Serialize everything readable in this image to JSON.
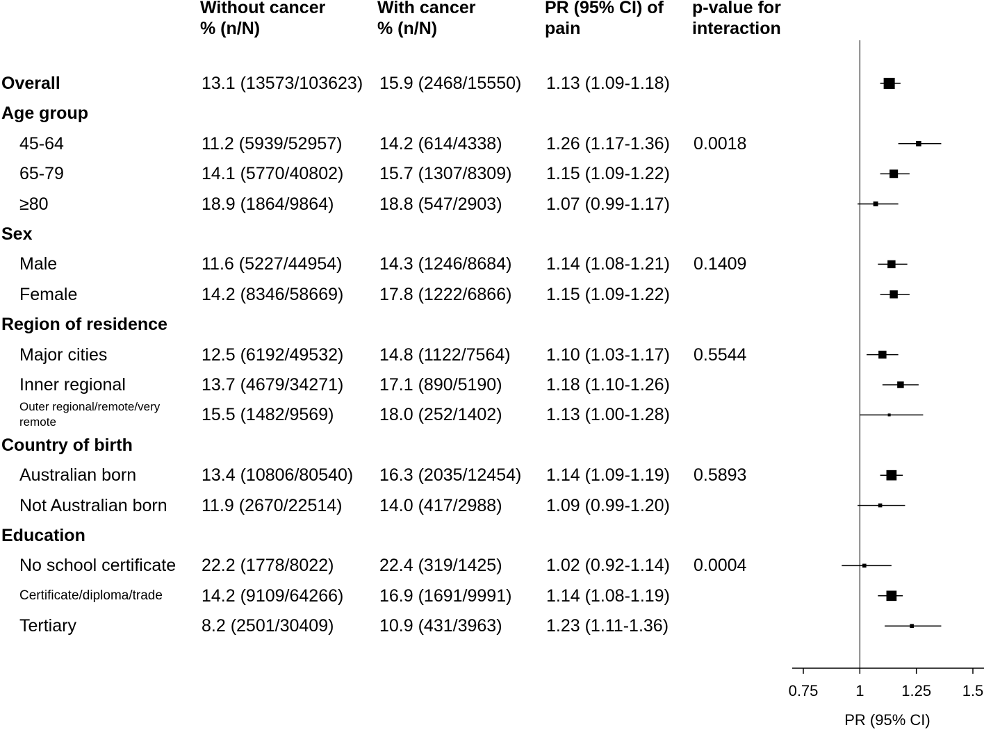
{
  "headers": {
    "without": [
      "Without cancer",
      "% (n/N)"
    ],
    "with": [
      "With cancer",
      "% (n/N)"
    ],
    "pr": [
      "PR (95% CI) of",
      "pain"
    ],
    "pval": [
      "p-value for",
      "interaction"
    ]
  },
  "rows": [
    {
      "label": "Overall",
      "kind": "group",
      "without": "13.1 (13573/103623)",
      "with": "15.9 (2468/15550)",
      "pr_text": "1.13 (1.09-1.18)",
      "pval": ""
    },
    {
      "label": "Age group",
      "kind": "group"
    },
    {
      "label": "45-64",
      "kind": "sub",
      "without": "11.2 (5939/52957)",
      "with": "14.2 (614/4338)",
      "pr_text": "1.26 (1.17-1.36)",
      "pval": "0.0018"
    },
    {
      "label": "65-79",
      "kind": "sub",
      "without": "14.1 (5770/40802)",
      "with": "15.7 (1307/8309)",
      "pr_text": "1.15 (1.09-1.22)",
      "pval": ""
    },
    {
      "label": "≥80",
      "kind": "sub",
      "without": "18.9 (1864/9864)",
      "with": "18.8 (547/2903)",
      "pr_text": "1.07 (0.99-1.17)",
      "pval": ""
    },
    {
      "label": "Sex",
      "kind": "group"
    },
    {
      "label": "Male",
      "kind": "sub",
      "without": "11.6 (5227/44954)",
      "with": "14.3 (1246/8684)",
      "pr_text": "1.14 (1.08-1.21)",
      "pval": "0.1409"
    },
    {
      "label": "Female",
      "kind": "sub",
      "without": "14.2 (8346/58669)",
      "with": "17.8 (1222/6866)",
      "pr_text": "1.15 (1.09-1.22)",
      "pval": ""
    },
    {
      "label": "Region of residence",
      "kind": "group"
    },
    {
      "label": "Major cities",
      "kind": "sub",
      "without": "12.5 (6192/49532)",
      "with": "14.8 (1122/7564)",
      "pr_text": "1.10 (1.03-1.17)",
      "pval": "0.5544"
    },
    {
      "label": "Inner regional",
      "kind": "sub",
      "without": "13.7 (4679/34271)",
      "with": "17.1 (890/5190)",
      "pr_text": "1.18 (1.10-1.26)",
      "pval": ""
    },
    {
      "label": "Outer regional/remote/very remote",
      "kind": "sub small",
      "without": "15.5 (1482/9569)",
      "with": "18.0 (252/1402)",
      "pr_text": "1.13 (1.00-1.28)",
      "pval": ""
    },
    {
      "label": "Country of birth",
      "kind": "group"
    },
    {
      "label": "Australian born",
      "kind": "sub",
      "without": "13.4 (10806/80540)",
      "with": "16.3 (2035/12454)",
      "pr_text": "1.14 (1.09-1.19)",
      "pval": "0.5893"
    },
    {
      "label": "Not Australian born",
      "kind": "sub",
      "without": "11.9 (2670/22514)",
      "with": "14.0 (417/2988)",
      "pr_text": "1.09 (0.99-1.20)",
      "pval": ""
    },
    {
      "label": "Education",
      "kind": "group"
    },
    {
      "label": "No school certificate",
      "kind": "sub",
      "without": "22.2 (1778/8022)",
      "with": "22.4 (319/1425)",
      "pr_text": "1.02 (0.92-1.14)",
      "pval": "0.0004"
    },
    {
      "label": "Certificate/diploma/trade",
      "kind": "sub small2",
      "without": "14.2 (9109/64266)",
      "with": "16.9 (1691/9991)",
      "pr_text": "1.14 (1.08-1.19)",
      "pval": ""
    },
    {
      "label": "Tertiary",
      "kind": "sub",
      "without": "8.2 (2501/30409)",
      "with": "10.9 (431/3963)",
      "pr_text": "1.23 (1.11-1.36)",
      "pval": ""
    }
  ],
  "chart_data": {
    "type": "forest",
    "xlabel": "PR (95% CI)",
    "xlim": [
      0.75,
      1.5
    ],
    "xticks": [
      0.75,
      1,
      1.25,
      1.5
    ],
    "xtick_labels": [
      "0.75",
      "1",
      "1.25",
      "1.5"
    ],
    "reference_line": 1,
    "points": [
      {
        "label": "Overall",
        "pr": 1.13,
        "lo": 1.09,
        "hi": 1.18,
        "weight": 1.0
      },
      {
        "label": "45-64",
        "pr": 1.26,
        "lo": 1.17,
        "hi": 1.36,
        "weight": 0.35
      },
      {
        "label": "65-79",
        "pr": 1.15,
        "lo": 1.09,
        "hi": 1.22,
        "weight": 0.7
      },
      {
        "label": "≥80",
        "pr": 1.07,
        "lo": 0.99,
        "hi": 1.17,
        "weight": 0.3
      },
      {
        "label": "Male",
        "pr": 1.14,
        "lo": 1.08,
        "hi": 1.21,
        "weight": 0.65
      },
      {
        "label": "Female",
        "pr": 1.15,
        "lo": 1.09,
        "hi": 1.22,
        "weight": 0.65
      },
      {
        "label": "Major cities",
        "pr": 1.1,
        "lo": 1.03,
        "hi": 1.17,
        "weight": 0.65
      },
      {
        "label": "Inner regional",
        "pr": 1.18,
        "lo": 1.1,
        "hi": 1.26,
        "weight": 0.5
      },
      {
        "label": "Outer regional/remote/very remote",
        "pr": 1.13,
        "lo": 1.0,
        "hi": 1.28,
        "weight": 0.08
      },
      {
        "label": "Australian born",
        "pr": 1.14,
        "lo": 1.09,
        "hi": 1.19,
        "weight": 0.9
      },
      {
        "label": "Not Australian born",
        "pr": 1.09,
        "lo": 0.99,
        "hi": 1.2,
        "weight": 0.2
      },
      {
        "label": "No school certificate",
        "pr": 1.02,
        "lo": 0.92,
        "hi": 1.14,
        "weight": 0.2
      },
      {
        "label": "Certificate/diploma/trade",
        "pr": 1.14,
        "lo": 1.08,
        "hi": 1.19,
        "weight": 0.9
      },
      {
        "label": "Tertiary",
        "pr": 1.23,
        "lo": 1.11,
        "hi": 1.36,
        "weight": 0.2
      }
    ]
  }
}
